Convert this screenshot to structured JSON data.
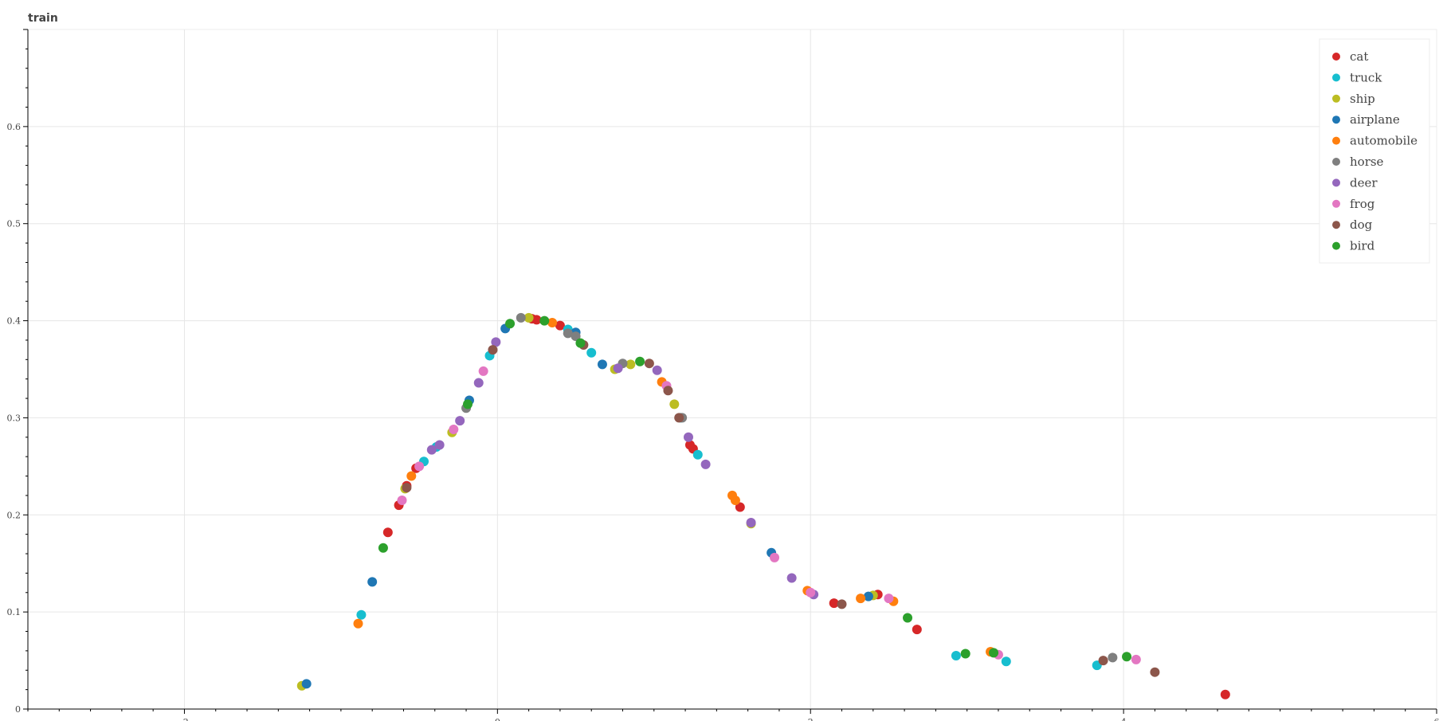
{
  "chart_data": {
    "type": "scatter",
    "title": "train",
    "xlabel": "",
    "ylabel": "",
    "xlim": [
      -3,
      6
    ],
    "ylim": [
      0,
      0.7
    ],
    "xticks": [
      -2,
      0,
      2,
      4,
      6
    ],
    "xtick_labels": [
      "-2",
      "0",
      "2",
      "4",
      "6"
    ],
    "yticks": [
      0,
      0.1,
      0.2,
      0.3,
      0.4,
      0.5,
      0.6
    ],
    "ytick_labels": [
      "0",
      "0.1",
      "0.2",
      "0.3",
      "0.4",
      "0.5",
      "0.6"
    ],
    "grid": true,
    "legend_position": "top-right",
    "series": [
      {
        "name": "cat",
        "color": "#d62728",
        "points": [
          [
            -0.63,
            0.21
          ],
          [
            -0.58,
            0.23
          ],
          [
            -0.7,
            0.182
          ],
          [
            -0.52,
            0.248
          ],
          [
            0.25,
            0.401
          ],
          [
            0.4,
            0.395
          ],
          [
            1.23,
            0.272
          ],
          [
            1.25,
            0.268
          ],
          [
            1.55,
            0.208
          ],
          [
            2.15,
            0.109
          ],
          [
            2.43,
            0.118
          ],
          [
            2.68,
            0.082
          ],
          [
            4.65,
            0.015
          ],
          [
            0.22,
            0.402
          ]
        ]
      },
      {
        "name": "truck",
        "color": "#17becf",
        "points": [
          [
            -0.87,
            0.097
          ],
          [
            -0.47,
            0.255
          ],
          [
            -0.05,
            0.364
          ],
          [
            0.6,
            0.367
          ],
          [
            0.45,
            0.391
          ],
          [
            1.28,
            0.262
          ],
          [
            1.17,
            0.3
          ],
          [
            2.93,
            0.055
          ],
          [
            3.25,
            0.049
          ],
          [
            3.83,
            0.045
          ],
          [
            -0.39,
            0.27
          ]
        ]
      },
      {
        "name": "ship",
        "color": "#bcbd22",
        "points": [
          [
            -1.25,
            0.024
          ],
          [
            -0.59,
            0.227
          ],
          [
            -0.29,
            0.285
          ],
          [
            0.2,
            0.403
          ],
          [
            0.75,
            0.35
          ],
          [
            0.85,
            0.355
          ],
          [
            1.13,
            0.314
          ],
          [
            1.62,
            0.191
          ],
          [
            2.4,
            0.117
          ],
          [
            3.15,
            0.059
          ]
        ]
      },
      {
        "name": "airplane",
        "color": "#1f77b4",
        "points": [
          [
            -1.22,
            0.026
          ],
          [
            -0.8,
            0.131
          ],
          [
            -0.18,
            0.318
          ],
          [
            0.05,
            0.392
          ],
          [
            0.67,
            0.355
          ],
          [
            1.75,
            0.161
          ],
          [
            2.37,
            0.116
          ],
          [
            0.5,
            0.388
          ]
        ]
      },
      {
        "name": "automobile",
        "color": "#ff7f0e",
        "points": [
          [
            -0.89,
            0.088
          ],
          [
            -0.55,
            0.24
          ],
          [
            0.35,
            0.398
          ],
          [
            1.05,
            0.337
          ],
          [
            1.5,
            0.22
          ],
          [
            1.52,
            0.215
          ],
          [
            1.98,
            0.122
          ],
          [
            2.32,
            0.114
          ],
          [
            2.53,
            0.111
          ],
          [
            3.15,
            0.059
          ]
        ]
      },
      {
        "name": "horse",
        "color": "#7f7f7f",
        "points": [
          [
            -0.2,
            0.31
          ],
          [
            0.15,
            0.403
          ],
          [
            0.45,
            0.387
          ],
          [
            0.5,
            0.384
          ],
          [
            0.8,
            0.356
          ],
          [
            1.18,
            0.3
          ],
          [
            3.93,
            0.053
          ]
        ]
      },
      {
        "name": "deer",
        "color": "#9467bd",
        "points": [
          [
            -0.42,
            0.267
          ],
          [
            -0.37,
            0.272
          ],
          [
            -0.24,
            0.297
          ],
          [
            -0.12,
            0.336
          ],
          [
            -0.01,
            0.378
          ],
          [
            0.77,
            0.351
          ],
          [
            1.02,
            0.349
          ],
          [
            1.22,
            0.28
          ],
          [
            1.33,
            0.252
          ],
          [
            1.62,
            0.192
          ],
          [
            1.88,
            0.135
          ],
          [
            2.02,
            0.118
          ]
        ]
      },
      {
        "name": "frog",
        "color": "#e377c2",
        "points": [
          [
            -0.61,
            0.215
          ],
          [
            -0.5,
            0.25
          ],
          [
            -0.28,
            0.288
          ],
          [
            -0.09,
            0.348
          ],
          [
            1.08,
            0.333
          ],
          [
            1.77,
            0.156
          ],
          [
            2.0,
            0.12
          ],
          [
            2.5,
            0.114
          ],
          [
            3.2,
            0.056
          ],
          [
            4.08,
            0.051
          ]
        ]
      },
      {
        "name": "dog",
        "color": "#8c564b",
        "points": [
          [
            -0.58,
            0.228
          ],
          [
            0.55,
            0.375
          ],
          [
            0.97,
            0.356
          ],
          [
            1.09,
            0.328
          ],
          [
            1.16,
            0.3
          ],
          [
            2.2,
            0.108
          ],
          [
            3.87,
            0.05
          ],
          [
            4.2,
            0.038
          ],
          [
            -0.03,
            0.37
          ]
        ]
      },
      {
        "name": "bird",
        "color": "#2ca02c",
        "points": [
          [
            -0.73,
            0.166
          ],
          [
            0.08,
            0.397
          ],
          [
            0.3,
            0.4
          ],
          [
            0.53,
            0.377
          ],
          [
            0.91,
            0.358
          ],
          [
            2.62,
            0.094
          ],
          [
            2.99,
            0.057
          ],
          [
            3.17,
            0.058
          ],
          [
            4.02,
            0.054
          ],
          [
            -0.19,
            0.314
          ]
        ]
      }
    ]
  }
}
